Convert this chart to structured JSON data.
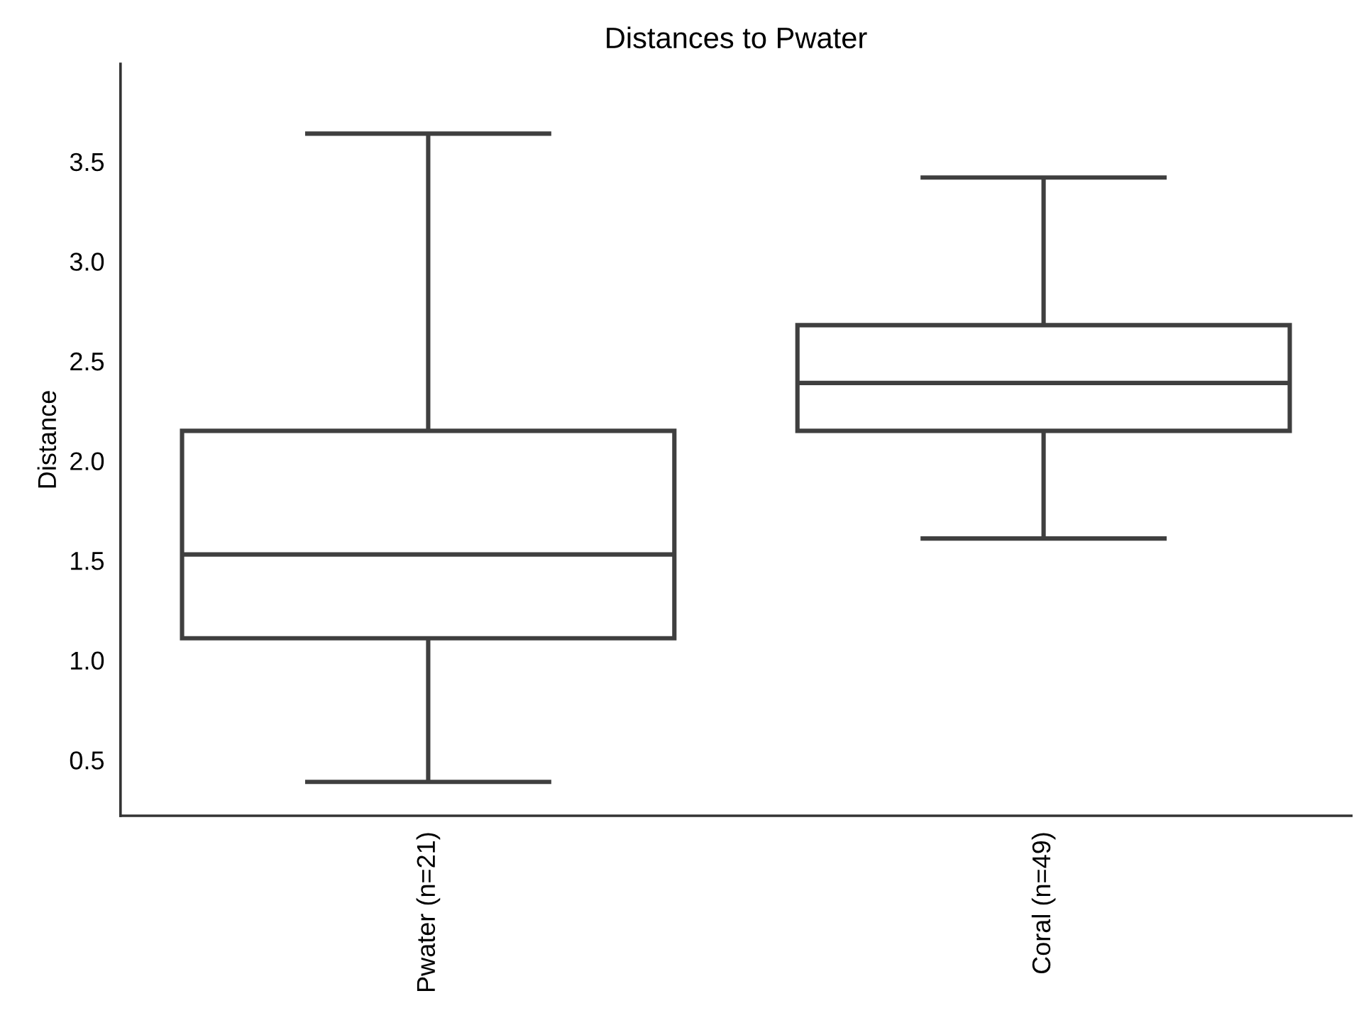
{
  "chart_data": {
    "type": "box",
    "title": "Distances to Pwater",
    "ylabel": "Distance",
    "categories": [
      "Pwater (n=21)",
      "Coral (n=49)"
    ],
    "boxes": [
      {
        "low": 0.39,
        "q1": 1.11,
        "median": 1.53,
        "q3": 2.15,
        "high": 3.64
      },
      {
        "low": 1.61,
        "q1": 2.15,
        "median": 2.39,
        "q3": 2.68,
        "high": 3.42
      }
    ],
    "color": "#3f3f3f",
    "ylim": [
      0.22,
      3.99
    ],
    "yticks": [
      0.5,
      {
        "value": 1,
        "label": "1.0"
      },
      1.5,
      {
        "value": 2,
        "label": "2.0"
      },
      2.5,
      {
        "value": 3,
        "label": "3.0"
      },
      3.5
    ],
    "grid": false
  }
}
